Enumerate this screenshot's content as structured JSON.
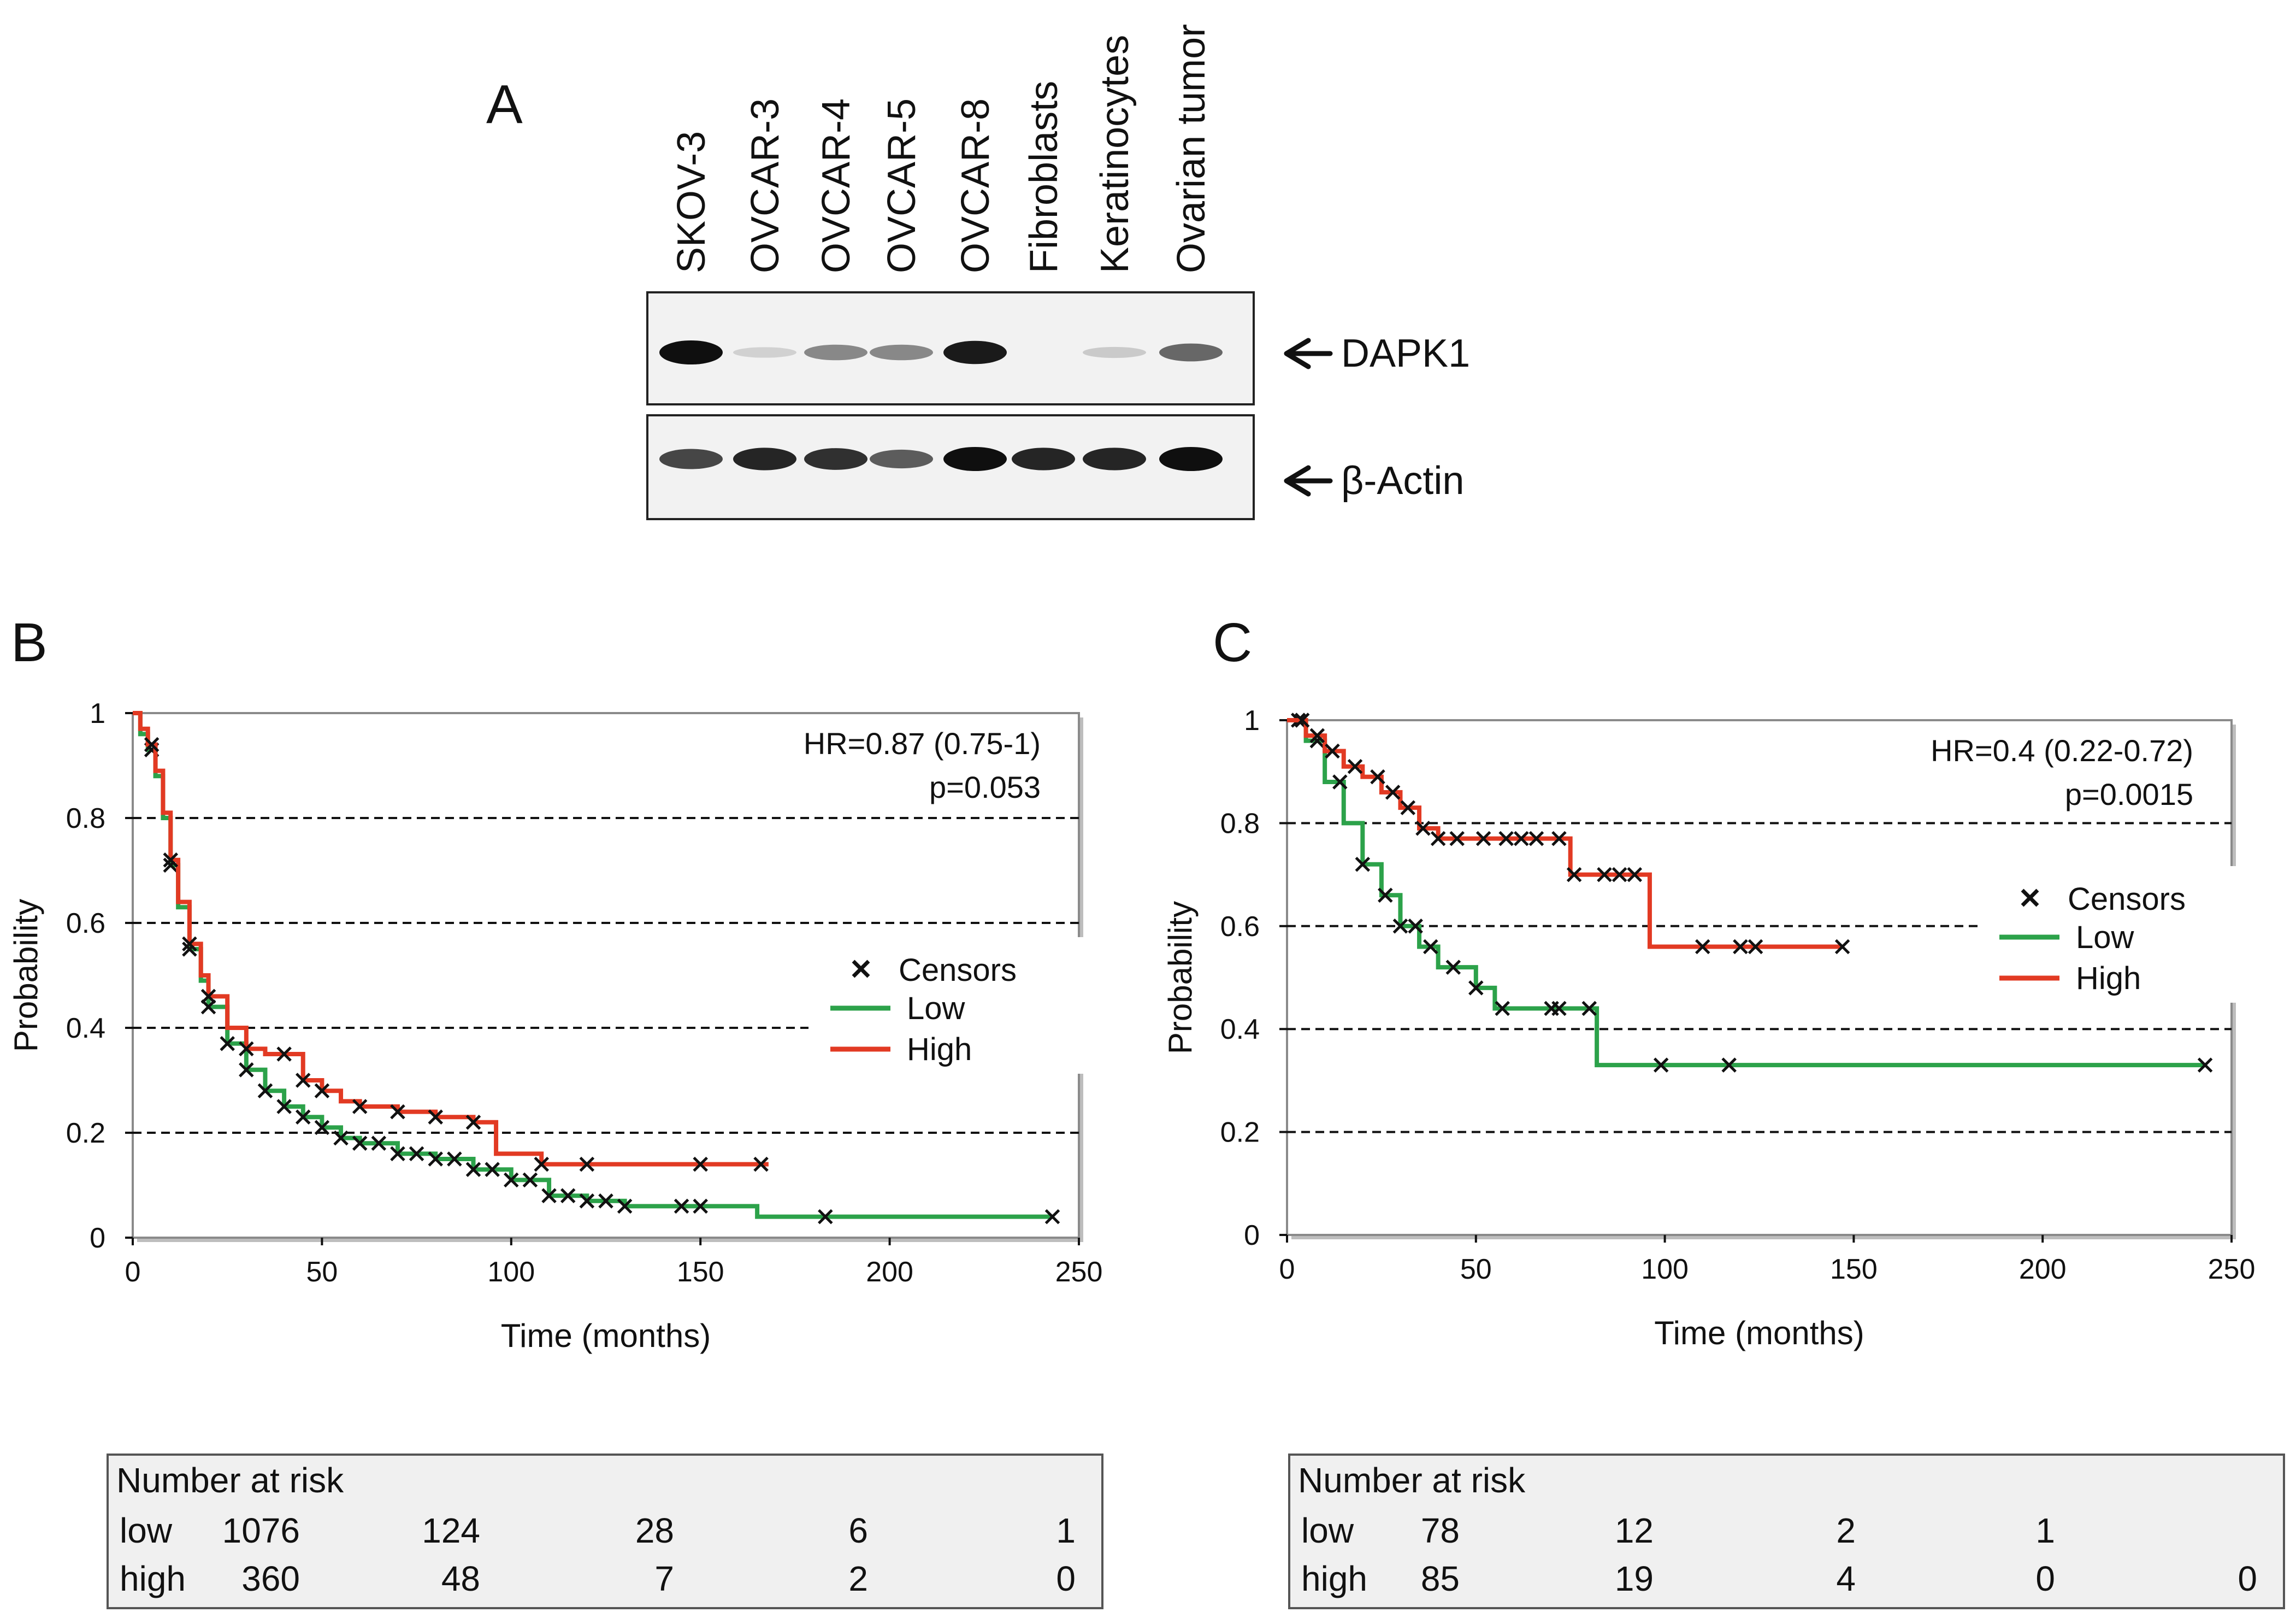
{
  "panel_a": {
    "label": "A",
    "lanes": [
      "SKOV-3",
      "OVCAR-3",
      "OVCAR-4",
      "OVCAR-5",
      "OVCAR-8",
      "Fibroblasts",
      "Keratinocytes",
      "Ovarian tumor"
    ],
    "blots": [
      {
        "name": "DAPK1",
        "intensity": [
          1.0,
          0.12,
          0.45,
          0.45,
          0.95,
          0.0,
          0.15,
          0.6
        ]
      },
      {
        "name": "β-Actin",
        "intensity": [
          0.75,
          0.9,
          0.85,
          0.65,
          1.0,
          0.9,
          0.9,
          1.0
        ]
      }
    ]
  },
  "panel_b": {
    "label": "B",
    "risk_table": {
      "title": "Number at risk",
      "rows": [
        {
          "label": "low",
          "values": [
            "1076",
            "124",
            "28",
            "6",
            "1"
          ]
        },
        {
          "label": "high",
          "values": [
            "360",
            "48",
            "7",
            "2",
            "0"
          ]
        }
      ]
    }
  },
  "panel_c": {
    "label": "C",
    "risk_table": {
      "title": "Number at risk",
      "rows": [
        {
          "label": "low",
          "values": [
            "78",
            "12",
            "2",
            "1",
            ""
          ]
        },
        {
          "label": "high",
          "values": [
            "85",
            "19",
            "4",
            "0",
            "0"
          ]
        }
      ]
    }
  },
  "chart_data": [
    {
      "type": "line",
      "panel": "B",
      "title": "",
      "xlabel": "Time (months)",
      "ylabel": "Probability",
      "xlim": [
        0,
        250
      ],
      "ylim": [
        0,
        1
      ],
      "xticks": [
        "0",
        "50",
        "100",
        "150",
        "200",
        "250"
      ],
      "yticks": [
        "0",
        "0.2",
        "0.4",
        "0.6",
        "0.8",
        "1"
      ],
      "annotation": [
        "HR=0.87 (0.75-1)",
        "p=0.053"
      ],
      "legend": {
        "censors": "Censors",
        "low": "Low",
        "high": "High"
      },
      "series": [
        {
          "name": "Low",
          "color": "#2ca24a",
          "x": [
            0,
            2,
            4,
            6,
            8,
            10,
            12,
            15,
            18,
            20,
            25,
            30,
            35,
            40,
            45,
            50,
            55,
            60,
            70,
            80,
            90,
            100,
            110,
            120,
            130,
            140,
            150,
            160,
            165,
            170,
            180,
            200,
            220,
            243
          ],
          "y": [
            1,
            0.96,
            0.93,
            0.88,
            0.8,
            0.71,
            0.63,
            0.55,
            0.49,
            0.44,
            0.37,
            0.32,
            0.28,
            0.25,
            0.23,
            0.21,
            0.19,
            0.18,
            0.16,
            0.15,
            0.13,
            0.11,
            0.08,
            0.07,
            0.06,
            0.06,
            0.06,
            0.06,
            0.04,
            0.04,
            0.04,
            0.04,
            0.04,
            0.04
          ],
          "censor_x": [
            5,
            10,
            15,
            20,
            25,
            30,
            35,
            40,
            45,
            50,
            55,
            60,
            65,
            70,
            75,
            80,
            85,
            90,
            95,
            100,
            105,
            110,
            115,
            120,
            125,
            130,
            145,
            150,
            183,
            243
          ]
        },
        {
          "name": "High",
          "color": "#e23a23",
          "x": [
            0,
            2,
            4,
            6,
            8,
            10,
            12,
            15,
            18,
            20,
            25,
            30,
            35,
            40,
            45,
            50,
            55,
            60,
            70,
            80,
            90,
            96,
            108,
            120,
            140,
            168
          ],
          "y": [
            1,
            0.97,
            0.94,
            0.89,
            0.81,
            0.72,
            0.64,
            0.56,
            0.5,
            0.46,
            0.4,
            0.36,
            0.35,
            0.35,
            0.3,
            0.28,
            0.26,
            0.25,
            0.24,
            0.23,
            0.22,
            0.16,
            0.14,
            0.14,
            0.14,
            0.14
          ],
          "censor_x": [
            5,
            10,
            15,
            20,
            30,
            40,
            45,
            50,
            60,
            70,
            80,
            90,
            108,
            120,
            150,
            166
          ]
        }
      ]
    },
    {
      "type": "line",
      "panel": "C",
      "title": "",
      "xlabel": "Time (months)",
      "ylabel": "Probability",
      "xlim": [
        0,
        250
      ],
      "ylim": [
        0,
        1
      ],
      "xticks": [
        "0",
        "50",
        "100",
        "150",
        "200",
        "250"
      ],
      "yticks": [
        "0",
        "0.2",
        "0.4",
        "0.6",
        "0.8",
        "1"
      ],
      "annotation": [
        "HR=0.4 (0.22-0.72)",
        "p=0.0015"
      ],
      "legend": {
        "censors": "Censors",
        "low": "Low",
        "high": "High"
      },
      "series": [
        {
          "name": "Low",
          "color": "#2ca24a",
          "x": [
            0,
            5,
            10,
            15,
            20,
            25,
            30,
            35,
            40,
            45,
            50,
            55,
            60,
            70,
            82,
            100,
            150,
            200,
            243
          ],
          "y": [
            1,
            0.96,
            0.88,
            0.8,
            0.72,
            0.66,
            0.6,
            0.56,
            0.52,
            0.52,
            0.48,
            0.44,
            0.44,
            0.44,
            0.33,
            0.33,
            0.33,
            0.33,
            0.33
          ],
          "censor_x": [
            3,
            8,
            14,
            20,
            26,
            30,
            34,
            38,
            44,
            50,
            57,
            70,
            72,
            80,
            99,
            117,
            243
          ]
        },
        {
          "name": "High",
          "color": "#e23a23",
          "x": [
            0,
            5,
            10,
            15,
            20,
            25,
            30,
            35,
            40,
            50,
            60,
            70,
            75,
            85,
            96,
            110,
            130,
            147
          ],
          "y": [
            1,
            0.97,
            0.94,
            0.91,
            0.89,
            0.86,
            0.83,
            0.79,
            0.77,
            0.77,
            0.77,
            0.77,
            0.7,
            0.7,
            0.56,
            0.56,
            0.56,
            0.56
          ],
          "censor_x": [
            4,
            8,
            12,
            18,
            24,
            28,
            32,
            36,
            40,
            45,
            52,
            58,
            62,
            66,
            72,
            76,
            84,
            88,
            92,
            110,
            120,
            124,
            147
          ]
        }
      ]
    }
  ]
}
